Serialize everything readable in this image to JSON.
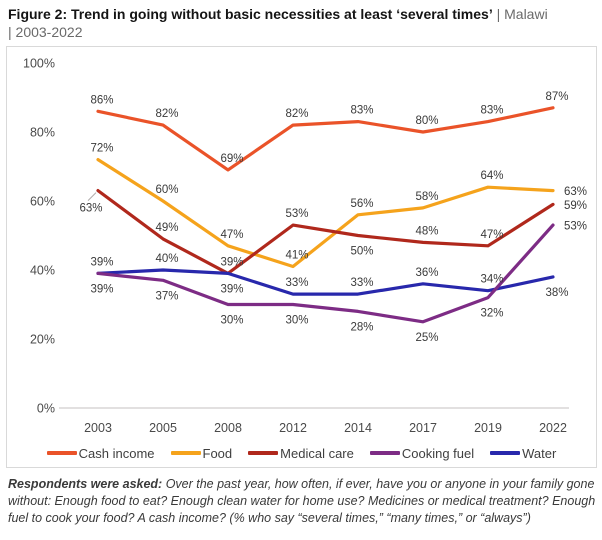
{
  "title": {
    "main": "Figure 2: Trend in going without basic necessities at least ‘several times’",
    "tail_line1": " | Malawi",
    "tail_line2": "| 2003-2022"
  },
  "chart_data": {
    "type": "line",
    "title": "Trend in going without basic necessities at least ‘several times’ | Malawi | 2003-2022",
    "x": [
      "2003",
      "2005",
      "2008",
      "2012",
      "2014",
      "2017",
      "2019",
      "2022"
    ],
    "y_ticks": [
      "100%",
      "80%",
      "60%",
      "40%",
      "20%",
      "0%"
    ],
    "ylim": [
      0,
      100
    ],
    "unit": "%",
    "grid": false,
    "legend_position": "bottom-inside",
    "axis_color": "#D0CECE",
    "label_color": "#3A3A3A",
    "series": [
      {
        "name": "Cash income",
        "color": "#EA5329",
        "values": [
          86,
          82,
          69,
          82,
          83,
          80,
          83,
          87
        ],
        "label_pos": [
          "a",
          "a",
          "a",
          "a",
          "a",
          "a",
          "a",
          "a"
        ]
      },
      {
        "name": "Food",
        "color": "#F5A31C",
        "values": [
          72,
          60,
          47,
          41,
          56,
          58,
          64,
          63
        ],
        "label_pos": [
          "a",
          "a",
          "a",
          "a",
          "a",
          "a",
          "a",
          "r"
        ]
      },
      {
        "name": "Medical care",
        "color": "#B0281C",
        "values": [
          63,
          49,
          39,
          53,
          50,
          48,
          47,
          59
        ],
        "label_pos": [
          "lb",
          "a",
          "a",
          "a",
          "b",
          "a",
          "a",
          "r"
        ]
      },
      {
        "name": "Cooking fuel",
        "color": "#7D2C85",
        "values": [
          39,
          37,
          30,
          30,
          28,
          25,
          32,
          53
        ],
        "label_pos": [
          "b",
          "b",
          "b",
          "b",
          "b",
          "b",
          "b",
          "r"
        ]
      },
      {
        "name": "Water",
        "color": "#2828AC",
        "values": [
          39,
          40,
          39,
          33,
          33,
          36,
          34,
          38
        ],
        "label_pos": [
          "a",
          "a",
          "b",
          "a",
          "a",
          "a",
          "a",
          "b"
        ]
      }
    ],
    "draw_order": [
      0,
      1,
      2,
      4,
      3
    ]
  },
  "footer": {
    "lead": "Respondents were asked:",
    "body": " Over the past year, how often, if ever, have you or anyone in your family gone without: Enough food to eat? Enough clean water for home use? Medicines or medical treatment? Enough fuel to cook your food? A cash income? (% who say “several times,” “many times,” or “always”)"
  }
}
